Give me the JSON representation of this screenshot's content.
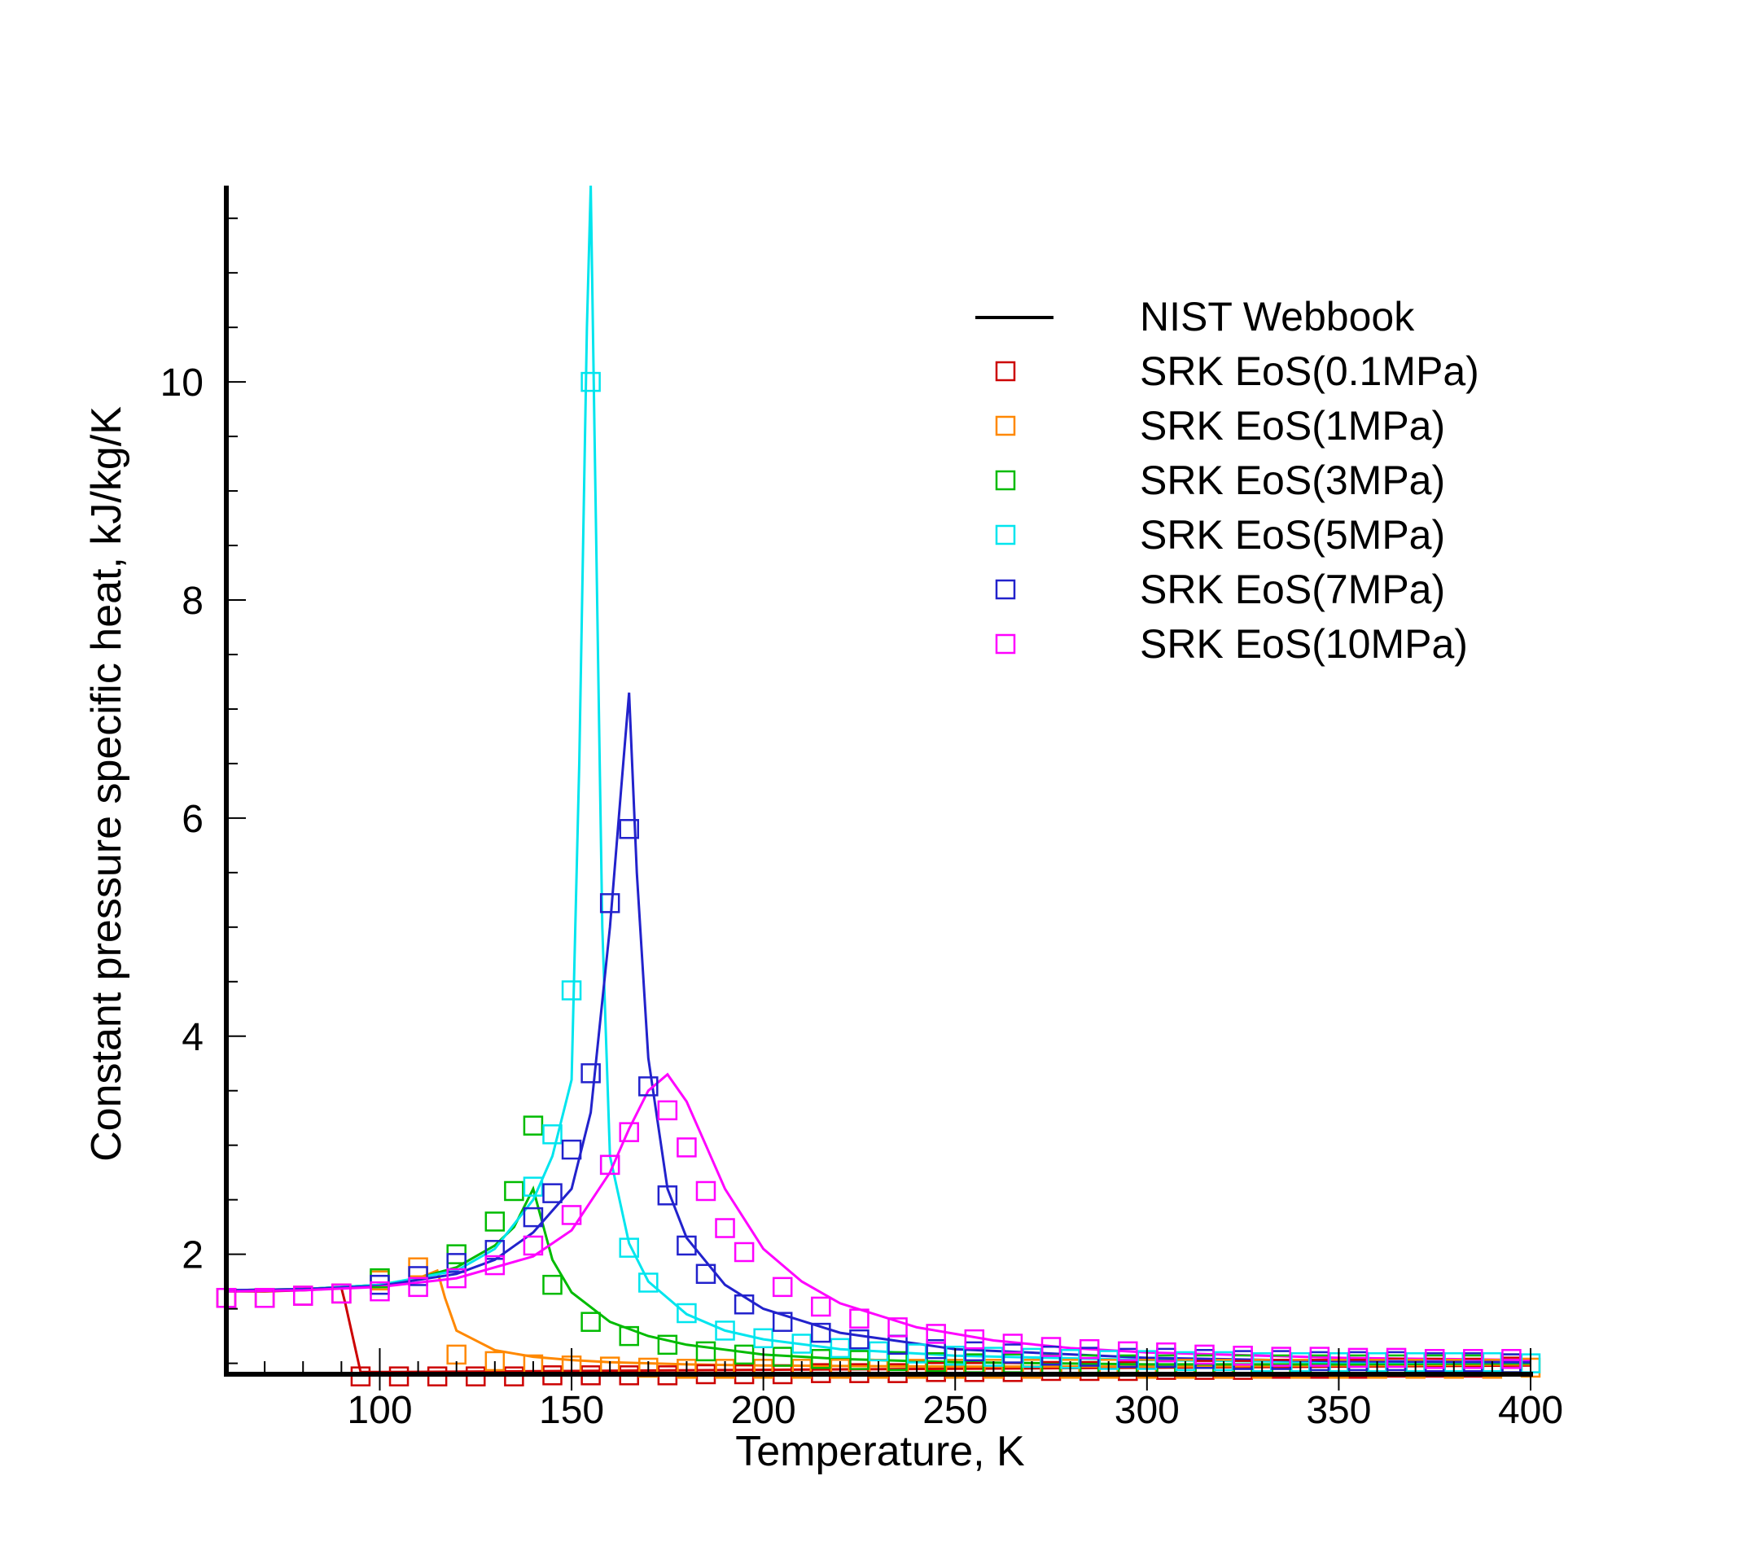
{
  "chart_data": {
    "type": "scatter",
    "xlabel": "Temperature, K",
    "ylabel": "Constant pressure specific heat, kJ/kg/K",
    "xlim": [
      60,
      400
    ],
    "ylim": [
      0.9,
      11.8
    ],
    "x_ticks": [
      100,
      150,
      200,
      250,
      300,
      350,
      400
    ],
    "x_tick_labels": [
      "100",
      "150",
      "200",
      "250",
      "300",
      "350",
      "400"
    ],
    "y_ticks": [
      2,
      4,
      6,
      8,
      10
    ],
    "y_tick_labels": [
      "2",
      "4",
      "6",
      "8",
      "10"
    ],
    "grid": false,
    "legend_position": "top-right",
    "legend": {
      "line_label": "NIST Webbook",
      "marker_labels": [
        "SRK EoS(0.1MPa)",
        "SRK EoS(1MPa)",
        "SRK EoS(3MPa)",
        "SRK EoS(5MPa)",
        "SRK EoS(7MPa)",
        "SRK EoS(10MPa)"
      ]
    },
    "series": [
      {
        "name": "SRK EoS(0.1MPa)",
        "color": "#cc0000",
        "line_x": [
          60,
          70,
          80,
          90,
          91,
          95,
          100,
          150,
          200,
          250,
          300,
          350,
          400
        ],
        "line_y": [
          1.66,
          1.66,
          1.67,
          1.69,
          1.55,
          0.92,
          0.92,
          0.93,
          0.94,
          0.95,
          0.96,
          0.97,
          0.98
        ],
        "marker_x": [
          60,
          70,
          80,
          90,
          95,
          105,
          115,
          125,
          135,
          145,
          155,
          165,
          175,
          185,
          195,
          205,
          215,
          225,
          235,
          245,
          255,
          265,
          275,
          285,
          295,
          305,
          315,
          325,
          335,
          345,
          355,
          365,
          375,
          385,
          395
        ],
        "marker_y": [
          1.6,
          1.6,
          1.62,
          1.64,
          0.88,
          0.88,
          0.88,
          0.88,
          0.88,
          0.89,
          0.89,
          0.89,
          0.89,
          0.9,
          0.9,
          0.9,
          0.91,
          0.91,
          0.91,
          0.92,
          0.92,
          0.92,
          0.93,
          0.93,
          0.93,
          0.94,
          0.94,
          0.94,
          0.95,
          0.95,
          0.95,
          0.96,
          0.96,
          0.96,
          0.97
        ]
      },
      {
        "name": "SRK EoS(1MPa)",
        "color": "#ff8800",
        "line_x": [
          60,
          80,
          100,
          110,
          115,
          117,
          120,
          130,
          140,
          150,
          160,
          180,
          200,
          250,
          300,
          350,
          400
        ],
        "line_y": [
          1.67,
          1.68,
          1.72,
          1.78,
          1.85,
          1.6,
          1.3,
          1.12,
          1.06,
          1.03,
          1.01,
          0.99,
          0.98,
          0.97,
          0.97,
          0.98,
          0.99
        ],
        "marker_x": [
          100,
          110,
          120,
          130,
          140,
          150,
          160,
          170,
          180,
          190,
          200,
          210,
          220,
          230,
          240,
          250,
          260,
          270,
          280,
          290,
          300,
          310,
          320,
          330,
          340,
          350,
          360,
          370,
          380,
          390,
          400
        ],
        "marker_y": [
          1.76,
          1.88,
          1.08,
          1.02,
          0.99,
          0.98,
          0.97,
          0.96,
          0.95,
          0.95,
          0.95,
          0.95,
          0.95,
          0.95,
          0.95,
          0.95,
          0.95,
          0.95,
          0.95,
          0.95,
          0.95,
          0.95,
          0.95,
          0.95,
          0.95,
          0.95,
          0.95,
          0.95,
          0.95,
          0.95,
          0.96
        ]
      },
      {
        "name": "SRK EoS(3MPa)",
        "color": "#00bb00",
        "line_x": [
          60,
          80,
          100,
          110,
          120,
          130,
          135,
          140,
          145,
          150,
          160,
          170,
          180,
          200,
          220,
          250,
          300,
          350,
          400
        ],
        "line_y": [
          1.67,
          1.68,
          1.72,
          1.78,
          1.88,
          2.08,
          2.25,
          2.6,
          1.95,
          1.65,
          1.38,
          1.25,
          1.17,
          1.08,
          1.04,
          1.01,
          0.99,
          0.99,
          1.0
        ],
        "marker_x": [
          100,
          120,
          130,
          135,
          140,
          145,
          155,
          165,
          175,
          185,
          195,
          205,
          215,
          225,
          235,
          245,
          255,
          265,
          275,
          285,
          295,
          305,
          315,
          325,
          335,
          345,
          355,
          365,
          375,
          385,
          395
        ],
        "marker_y": [
          1.78,
          2.0,
          2.3,
          2.58,
          3.18,
          1.72,
          1.38,
          1.25,
          1.17,
          1.11,
          1.08,
          1.06,
          1.04,
          1.03,
          1.02,
          1.01,
          1.0,
          1.0,
          0.99,
          0.99,
          0.99,
          0.99,
          0.99,
          0.99,
          0.99,
          0.99,
          0.99,
          0.99,
          0.99,
          0.99,
          1.0
        ]
      },
      {
        "name": "SRK EoS(5MPa)",
        "color": "#00e5ee",
        "line_x": [
          60,
          80,
          100,
          120,
          130,
          140,
          145,
          150,
          152,
          154,
          155,
          156,
          158,
          160,
          165,
          170,
          180,
          190,
          200,
          220,
          250,
          300,
          350,
          400
        ],
        "line_y": [
          1.67,
          1.68,
          1.72,
          1.85,
          2.05,
          2.5,
          2.9,
          3.6,
          6.5,
          10.5,
          11.8,
          9.5,
          5.0,
          2.9,
          2.1,
          1.75,
          1.45,
          1.3,
          1.22,
          1.13,
          1.07,
          1.03,
          1.01,
          1.01
        ],
        "marker_x": [
          140,
          145,
          150,
          155,
          160,
          165,
          170,
          180,
          190,
          200,
          210,
          220,
          230,
          240,
          250,
          260,
          270,
          280,
          290,
          300,
          310,
          320,
          330,
          340,
          350,
          360,
          370,
          380,
          390,
          400
        ],
        "marker_y": [
          2.62,
          3.1,
          4.42,
          10.0,
          2.82,
          2.06,
          1.74,
          1.46,
          1.3,
          1.23,
          1.18,
          1.14,
          1.11,
          1.09,
          1.07,
          1.06,
          1.05,
          1.04,
          1.03,
          1.03,
          1.02,
          1.02,
          1.01,
          1.01,
          1.01,
          1.01,
          1.01,
          1.01,
          1.01,
          1.0
        ]
      },
      {
        "name": "SRK EoS(7MPa)",
        "color": "#2222cc",
        "line_x": [
          60,
          80,
          100,
          120,
          130,
          140,
          150,
          155,
          160,
          163,
          165,
          167,
          170,
          175,
          180,
          190,
          200,
          220,
          250,
          300,
          350,
          400
        ],
        "line_y": [
          1.67,
          1.68,
          1.71,
          1.82,
          1.95,
          2.2,
          2.6,
          3.3,
          5.0,
          6.3,
          7.15,
          5.5,
          3.8,
          2.6,
          2.15,
          1.72,
          1.5,
          1.28,
          1.13,
          1.05,
          1.02,
          1.01
        ],
        "marker_x": [
          100,
          110,
          120,
          130,
          140,
          145,
          150,
          155,
          160,
          165,
          170,
          175,
          180,
          185,
          195,
          205,
          215,
          225,
          235,
          245,
          255,
          265,
          275,
          285,
          295,
          305,
          315,
          325,
          335,
          345,
          355,
          365,
          375,
          385,
          395
        ],
        "marker_y": [
          1.72,
          1.8,
          1.92,
          2.04,
          2.34,
          2.56,
          2.96,
          3.66,
          5.22,
          5.9,
          3.54,
          2.54,
          2.08,
          1.82,
          1.54,
          1.38,
          1.28,
          1.22,
          1.17,
          1.13,
          1.11,
          1.09,
          1.07,
          1.06,
          1.05,
          1.05,
          1.04,
          1.03,
          1.03,
          1.02,
          1.02,
          1.02,
          1.01,
          1.01,
          1.0
        ]
      },
      {
        "name": "SRK EoS(10MPa)",
        "color": "#ff00ff",
        "line_x": [
          60,
          80,
          100,
          120,
          140,
          150,
          160,
          165,
          170,
          175,
          180,
          185,
          190,
          200,
          210,
          220,
          240,
          260,
          280,
          300,
          350,
          400
        ],
        "line_y": [
          1.66,
          1.67,
          1.7,
          1.78,
          1.98,
          2.22,
          2.75,
          3.15,
          3.5,
          3.65,
          3.4,
          3.0,
          2.6,
          2.05,
          1.75,
          1.55,
          1.33,
          1.21,
          1.14,
          1.1,
          1.05,
          1.03
        ],
        "marker_x": [
          60,
          70,
          80,
          90,
          100,
          110,
          120,
          130,
          140,
          150,
          160,
          165,
          175,
          180,
          185,
          190,
          195,
          205,
          215,
          225,
          235,
          245,
          255,
          265,
          275,
          285,
          295,
          305,
          315,
          325,
          335,
          345,
          355,
          365,
          375,
          385,
          395
        ],
        "marker_y": [
          1.6,
          1.6,
          1.62,
          1.64,
          1.66,
          1.7,
          1.78,
          1.9,
          2.08,
          2.36,
          2.82,
          3.12,
          3.32,
          2.98,
          2.58,
          2.24,
          2.02,
          1.7,
          1.52,
          1.41,
          1.33,
          1.27,
          1.22,
          1.18,
          1.15,
          1.13,
          1.11,
          1.1,
          1.08,
          1.07,
          1.06,
          1.06,
          1.05,
          1.05,
          1.04,
          1.04,
          1.04
        ]
      }
    ]
  }
}
